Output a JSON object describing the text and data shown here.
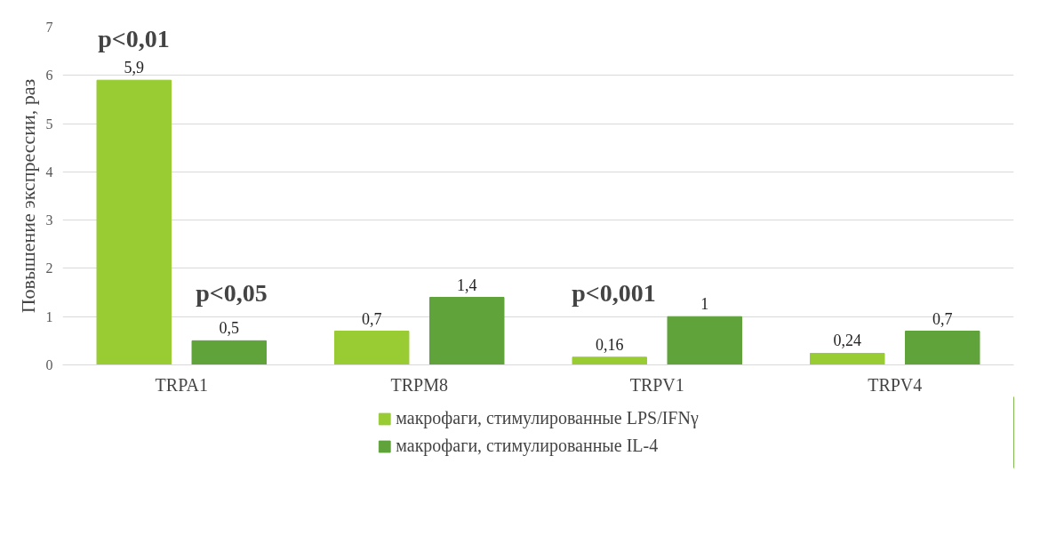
{
  "chart_data": {
    "type": "bar",
    "ylabel": "Повышение экспрессии, раз",
    "categories": [
      "TRPA1",
      "TRPM8",
      "TRPV1",
      "TRPV4"
    ],
    "series": [
      {
        "name": "макрофаги, стимулированные LPS/IFNγ",
        "color": "#99cc33",
        "values": [
          5.9,
          0.7,
          0.16,
          0.24
        ],
        "value_labels": [
          "5,9",
          "0,7",
          "0,16",
          "0,24"
        ]
      },
      {
        "name": "макрофаги, стимулированные IL-4",
        "color": "#5fa33a",
        "values": [
          0.5,
          1.4,
          1,
          0.7
        ],
        "value_labels": [
          "0,5",
          "1,4",
          "1",
          "0,7"
        ]
      }
    ],
    "ylim": [
      0,
      7
    ],
    "yticks": [
      0,
      1,
      2,
      3,
      4,
      5,
      6,
      7
    ],
    "grid": "y",
    "legend": "bottom",
    "annotations": [
      "p<0,01",
      "p<0,05",
      "p<0,001"
    ]
  }
}
